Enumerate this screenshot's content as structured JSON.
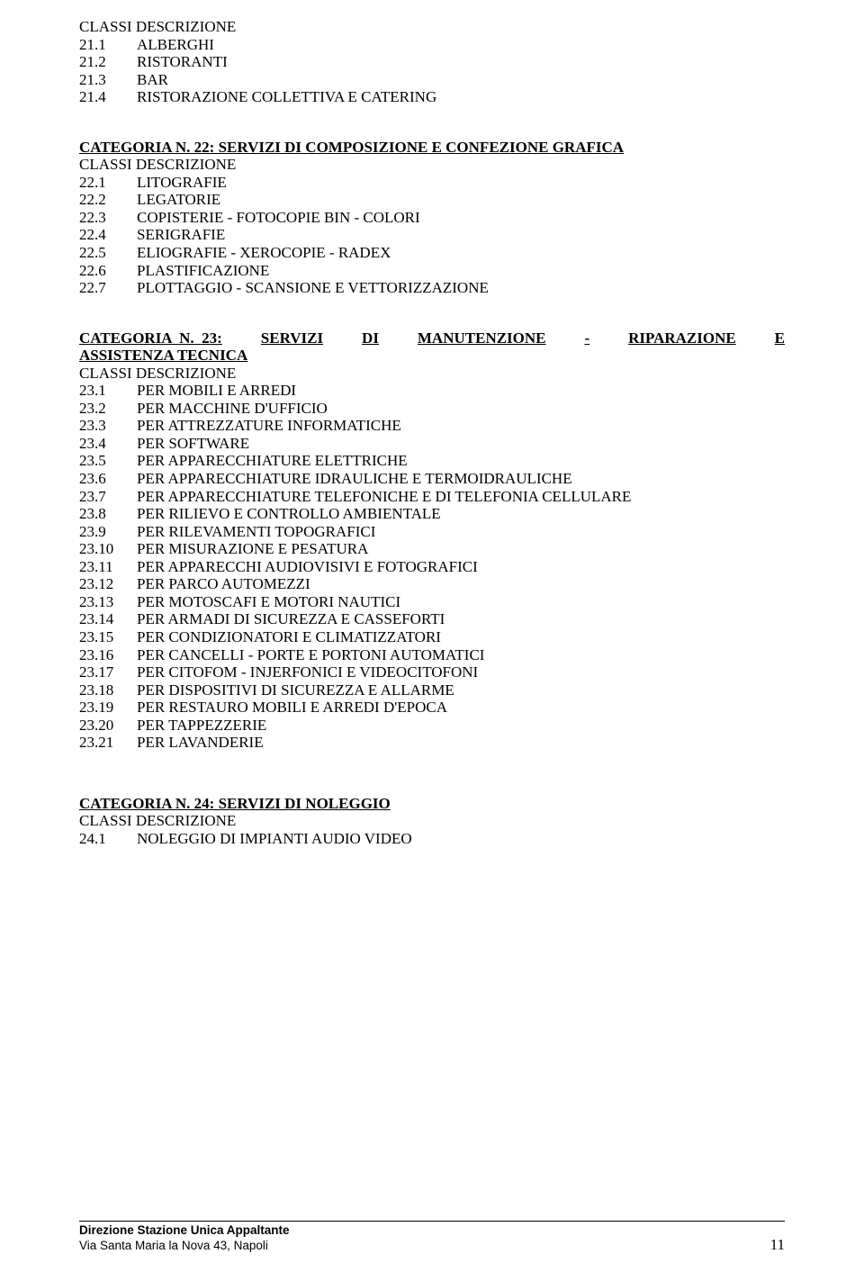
{
  "sections": [
    {
      "subhead": "CLASSI DESCRIZIONE",
      "items": [
        {
          "code": "21.1",
          "desc": "ALBERGHI"
        },
        {
          "code": "21.2",
          "desc": "RISTORANTI"
        },
        {
          "code": "21.3",
          "desc": "BAR"
        },
        {
          "code": "21.4",
          "desc": "RISTORAZIONE COLLETTIVA E CATERING"
        }
      ]
    },
    {
      "title": "CATEGORIA N. 22: SERVIZI DI COMPOSIZIONE E CONFEZIONE GRAFICA",
      "title_underline": true,
      "subhead": "CLASSI DESCRIZIONE",
      "items": [
        {
          "code": "22.1",
          "desc": "LITOGRAFIE"
        },
        {
          "code": "22.2",
          "desc": "LEGATORIE"
        },
        {
          "code": "22.3",
          "desc": "COPISTERIE - FOTOCOPIE BIN - COLORI"
        },
        {
          "code": "22.4",
          "desc": "SERIGRAFIE"
        },
        {
          "code": "22.5",
          "desc": "ELIOGRAFIE - XEROCOPIE - RADEX"
        },
        {
          "code": "22.6",
          "desc": "PLASTIFICAZIONE"
        },
        {
          "code": "22.7",
          "desc": "PLOTTAGGIO - SCANSIONE E VETTORIZZAZIONE"
        }
      ]
    },
    {
      "title_justified": {
        "line1": [
          "CATEGORIA  N.  23:",
          "SERVIZI",
          "DI",
          "MANUTENZIONE",
          "-",
          "RIPARAZIONE",
          "E"
        ],
        "line2": "ASSISTENZA TECNICA"
      },
      "subhead": "CLASSI DESCRIZIONE",
      "items": [
        {
          "code": "23.1",
          "desc": "PER MOBILI E ARREDI"
        },
        {
          "code": "23.2",
          "desc": "PER MACCHINE D'UFFICIO"
        },
        {
          "code": "23.3",
          "desc": "PER ATTREZZATURE  INFORMATICHE"
        },
        {
          "code": "23.4",
          "desc": "PER SOFTWARE"
        },
        {
          "code": "23.5",
          "desc": "PER APPARECCHIATURE ELETTRICHE"
        },
        {
          "code": "23.6",
          "desc": "PER APPARECCHIATURE IDRAULICHE E TERMOIDRAULICHE"
        },
        {
          "code": "23.7",
          "desc": "PER APPARECCHIATURE TELEFONICHE E DI TELEFONIA CELLULARE"
        },
        {
          "code": "23.8",
          "desc": "PER RILIEVO E CONTROLLO AMBIENTALE"
        },
        {
          "code": "23.9",
          "desc": "PER RILEVAMENTI TOPOGRAFICI"
        },
        {
          "code": "23.10",
          "desc": "PER MISURAZIONE E PESATURA"
        },
        {
          "code": "23.11",
          "desc": "PER APPARECCHI AUDIOVISIVI E FOTOGRAFICI"
        },
        {
          "code": "23.12",
          "desc": "PER PARCO AUTOMEZZI"
        },
        {
          "code": "23.13",
          "desc": "PER MOTOSCAFI E MOTORI NAUTICI"
        },
        {
          "code": "23.14",
          "desc": "PER ARMADI DI SICUREZZA E CASSEFORTI"
        },
        {
          "code": "23.15",
          "desc": "PER CONDIZIONATORI E CLIMATIZZATORI"
        },
        {
          "code": "23.16",
          "desc": "PER CANCELLI - PORTE E PORTONI AUTOMATICI"
        },
        {
          "code": "23.17",
          "desc": "PER CITOFOM - INJERFONICI E VIDEOCITOFONI"
        },
        {
          "code": "23.18",
          "desc": "PER DISPOSITIVI DI SICUREZZA E ALLARME"
        },
        {
          "code": "23.19",
          "desc": "PER RESTAURO MOBILI E ARREDI D'EPOCA"
        },
        {
          "code": "23.20",
          "desc": "PER TAPPEZZERIE"
        },
        {
          "code": "23.21",
          "desc": "PER LAVANDERIE"
        }
      ]
    },
    {
      "title": "CATEGORIA N. 24: SERVIZI DI NOLEGGIO",
      "title_underline": true,
      "subhead": "CLASSI   DESCRIZIONE",
      "items": [
        {
          "code": "24.1",
          "desc": "NOLEGGIO DI IMPIANTI AUDIO VIDEO"
        }
      ]
    }
  ],
  "footer": {
    "line1": "Direzione Stazione Unica Appaltante",
    "line2": "Via Santa Maria la Nova 43, Napoli",
    "page_number": "11"
  }
}
